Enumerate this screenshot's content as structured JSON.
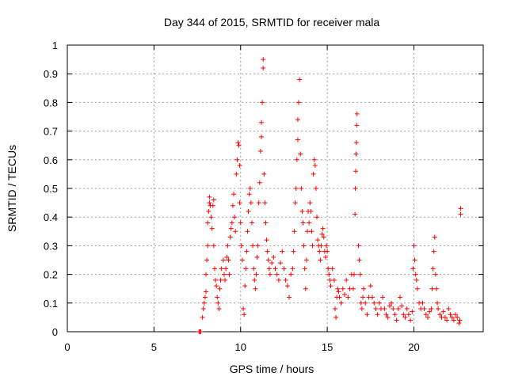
{
  "chart_data": {
    "type": "scatter",
    "title": "Day 344 of 2015, SRMTID for receiver mala",
    "xlabel": "GPS time / hours",
    "ylabel": "SRMTID / TECUs",
    "xlim": [
      0,
      24
    ],
    "ylim": [
      0,
      1
    ],
    "xticks": [
      0,
      5,
      10,
      15,
      20
    ],
    "xtick_labels": [
      "0",
      "5",
      "10",
      "15",
      "20"
    ],
    "yticks": [
      0,
      0.1,
      0.2,
      0.3,
      0.4,
      0.5,
      0.6,
      0.7,
      0.8,
      0.9,
      1
    ],
    "ytick_labels": [
      "0",
      "0.1",
      "0.2",
      "0.3",
      "0.4",
      "0.5",
      "0.6",
      "0.7",
      "0.8",
      "0.9",
      "1"
    ],
    "grid": true,
    "marker": "+",
    "color": "#ff0000",
    "series": [
      {
        "name": "SRMTID",
        "points": [
          [
            7.6,
            0.0
          ],
          [
            7.65,
            0.0
          ],
          [
            7.7,
            0.0
          ],
          [
            7.8,
            0.05
          ],
          [
            7.85,
            0.08
          ],
          [
            7.9,
            0.1
          ],
          [
            7.95,
            0.12
          ],
          [
            8.0,
            0.14
          ],
          [
            8.0,
            0.2
          ],
          [
            8.05,
            0.25
          ],
          [
            8.1,
            0.3
          ],
          [
            8.1,
            0.38
          ],
          [
            8.15,
            0.42
          ],
          [
            8.2,
            0.45
          ],
          [
            8.2,
            0.47
          ],
          [
            8.25,
            0.44
          ],
          [
            8.3,
            0.4
          ],
          [
            8.35,
            0.36
          ],
          [
            8.4,
            0.44
          ],
          [
            8.45,
            0.46
          ],
          [
            8.45,
            0.3
          ],
          [
            8.5,
            0.22
          ],
          [
            8.55,
            0.18
          ],
          [
            8.6,
            0.16
          ],
          [
            8.65,
            0.12
          ],
          [
            8.7,
            0.1
          ],
          [
            8.75,
            0.08
          ],
          [
            8.8,
            0.15
          ],
          [
            8.85,
            0.18
          ],
          [
            8.9,
            0.22
          ],
          [
            9.0,
            0.25
          ],
          [
            9.05,
            0.2
          ],
          [
            9.1,
            0.18
          ],
          [
            9.15,
            0.22
          ],
          [
            9.2,
            0.26
          ],
          [
            9.25,
            0.3
          ],
          [
            9.3,
            0.25
          ],
          [
            9.35,
            0.2
          ],
          [
            9.4,
            0.33
          ],
          [
            9.45,
            0.36
          ],
          [
            9.5,
            0.38
          ],
          [
            9.55,
            0.44
          ],
          [
            9.6,
            0.48
          ],
          [
            9.65,
            0.4
          ],
          [
            9.7,
            0.35
          ],
          [
            9.75,
            0.55
          ],
          [
            9.8,
            0.6
          ],
          [
            9.85,
            0.66
          ],
          [
            9.9,
            0.65
          ],
          [
            9.95,
            0.58
          ],
          [
            9.95,
            0.45
          ],
          [
            10.0,
            0.38
          ],
          [
            10.05,
            0.3
          ],
          [
            10.1,
            0.25
          ],
          [
            10.15,
            0.08
          ],
          [
            10.2,
            0.06
          ],
          [
            10.25,
            0.16
          ],
          [
            10.3,
            0.22
          ],
          [
            10.35,
            0.28
          ],
          [
            10.4,
            0.35
          ],
          [
            10.45,
            0.42
          ],
          [
            10.5,
            0.48
          ],
          [
            10.55,
            0.5
          ],
          [
            10.6,
            0.45
          ],
          [
            10.65,
            0.38
          ],
          [
            10.7,
            0.3
          ],
          [
            10.75,
            0.22
          ],
          [
            10.8,
            0.18
          ],
          [
            10.85,
            0.15
          ],
          [
            10.9,
            0.2
          ],
          [
            10.95,
            0.26
          ],
          [
            11.0,
            0.3
          ],
          [
            11.05,
            0.45
          ],
          [
            11.1,
            0.52
          ],
          [
            11.15,
            0.63
          ],
          [
            11.2,
            0.68
          ],
          [
            11.2,
            0.73
          ],
          [
            11.25,
            0.8
          ],
          [
            11.3,
            0.92
          ],
          [
            11.3,
            0.95
          ],
          [
            11.35,
            0.55
          ],
          [
            11.4,
            0.45
          ],
          [
            11.45,
            0.38
          ],
          [
            11.5,
            0.32
          ],
          [
            11.55,
            0.28
          ],
          [
            11.6,
            0.25
          ],
          [
            11.65,
            0.22
          ],
          [
            11.7,
            0.2
          ],
          [
            11.8,
            0.24
          ],
          [
            11.9,
            0.26
          ],
          [
            12.0,
            0.22
          ],
          [
            12.1,
            0.2
          ],
          [
            12.2,
            0.18
          ],
          [
            12.3,
            0.24
          ],
          [
            12.4,
            0.28
          ],
          [
            12.5,
            0.22
          ],
          [
            12.6,
            0.18
          ],
          [
            12.7,
            0.16
          ],
          [
            12.8,
            0.12
          ],
          [
            12.9,
            0.2
          ],
          [
            13.0,
            0.22
          ],
          [
            13.05,
            0.28
          ],
          [
            13.1,
            0.35
          ],
          [
            13.15,
            0.45
          ],
          [
            13.2,
            0.5
          ],
          [
            13.25,
            0.6
          ],
          [
            13.3,
            0.67
          ],
          [
            13.3,
            0.74
          ],
          [
            13.35,
            0.8
          ],
          [
            13.4,
            0.88
          ],
          [
            13.45,
            0.62
          ],
          [
            13.5,
            0.5
          ],
          [
            13.55,
            0.42
          ],
          [
            13.6,
            0.38
          ],
          [
            13.65,
            0.3
          ],
          [
            13.7,
            0.22
          ],
          [
            13.75,
            0.15
          ],
          [
            13.8,
            0.25
          ],
          [
            13.85,
            0.35
          ],
          [
            13.9,
            0.42
          ],
          [
            13.95,
            0.38
          ],
          [
            14.0,
            0.45
          ],
          [
            14.05,
            0.42
          ],
          [
            14.1,
            0.35
          ],
          [
            14.15,
            0.3
          ],
          [
            14.2,
            0.55
          ],
          [
            14.25,
            0.6
          ],
          [
            14.3,
            0.58
          ],
          [
            14.35,
            0.5
          ],
          [
            14.4,
            0.4
          ],
          [
            14.45,
            0.32
          ],
          [
            14.5,
            0.3
          ],
          [
            14.55,
            0.28
          ],
          [
            14.6,
            0.25
          ],
          [
            14.65,
            0.3
          ],
          [
            14.7,
            0.34
          ],
          [
            14.75,
            0.36
          ],
          [
            14.8,
            0.33
          ],
          [
            14.85,
            0.28
          ],
          [
            14.9,
            0.26
          ],
          [
            14.95,
            0.3
          ],
          [
            15.0,
            0.28
          ],
          [
            15.05,
            0.22
          ],
          [
            15.1,
            0.2
          ],
          [
            15.15,
            0.18
          ],
          [
            15.2,
            0.16
          ],
          [
            15.3,
            0.22
          ],
          [
            15.4,
            0.18
          ],
          [
            15.45,
            0.08
          ],
          [
            15.5,
            0.05
          ],
          [
            15.55,
            0.12
          ],
          [
            15.6,
            0.15
          ],
          [
            15.65,
            0.14
          ],
          [
            15.7,
            0.12
          ],
          [
            15.8,
            0.1
          ],
          [
            15.9,
            0.15
          ],
          [
            16.0,
            0.13
          ],
          [
            16.1,
            0.18
          ],
          [
            16.2,
            0.12
          ],
          [
            16.3,
            0.15
          ],
          [
            16.4,
            0.2
          ],
          [
            16.5,
            0.15
          ],
          [
            16.55,
            0.2
          ],
          [
            16.6,
            0.41
          ],
          [
            16.62,
            0.5
          ],
          [
            16.64,
            0.56
          ],
          [
            16.66,
            0.62
          ],
          [
            16.68,
            0.66
          ],
          [
            16.7,
            0.72
          ],
          [
            16.72,
            0.76
          ],
          [
            16.8,
            0.3
          ],
          [
            16.85,
            0.25
          ],
          [
            16.9,
            0.2
          ],
          [
            16.95,
            0.1
          ],
          [
            17.0,
            0.08
          ],
          [
            17.05,
            0.12
          ],
          [
            17.1,
            0.15
          ],
          [
            17.2,
            0.1
          ],
          [
            17.3,
            0.06
          ],
          [
            17.4,
            0.12
          ],
          [
            17.5,
            0.16
          ],
          [
            17.6,
            0.12
          ],
          [
            17.7,
            0.1
          ],
          [
            17.8,
            0.08
          ],
          [
            17.9,
            0.06
          ],
          [
            18.0,
            0.1
          ],
          [
            18.1,
            0.08
          ],
          [
            18.2,
            0.12
          ],
          [
            18.3,
            0.08
          ],
          [
            18.4,
            0.06
          ],
          [
            18.5,
            0.05
          ],
          [
            18.6,
            0.09
          ],
          [
            18.7,
            0.1
          ],
          [
            18.8,
            0.08
          ],
          [
            18.9,
            0.06
          ],
          [
            19.0,
            0.04
          ],
          [
            19.1,
            0.08
          ],
          [
            19.2,
            0.12
          ],
          [
            19.3,
            0.09
          ],
          [
            19.4,
            0.06
          ],
          [
            19.5,
            0.05
          ],
          [
            19.6,
            0.08
          ],
          [
            19.7,
            0.06
          ],
          [
            19.8,
            0.04
          ],
          [
            19.9,
            0.07
          ],
          [
            19.95,
            0.22
          ],
          [
            20.0,
            0.3
          ],
          [
            20.05,
            0.25
          ],
          [
            20.1,
            0.2
          ],
          [
            20.15,
            0.18
          ],
          [
            20.2,
            0.15
          ],
          [
            20.3,
            0.1
          ],
          [
            20.4,
            0.08
          ],
          [
            20.5,
            0.1
          ],
          [
            20.6,
            0.08
          ],
          [
            20.7,
            0.06
          ],
          [
            20.8,
            0.05
          ],
          [
            20.9,
            0.07
          ],
          [
            21.0,
            0.08
          ],
          [
            21.05,
            0.15
          ],
          [
            21.1,
            0.22
          ],
          [
            21.15,
            0.28
          ],
          [
            21.2,
            0.33
          ],
          [
            21.25,
            0.2
          ],
          [
            21.3,
            0.15
          ],
          [
            21.35,
            0.1
          ],
          [
            21.4,
            0.08
          ],
          [
            21.5,
            0.06
          ],
          [
            21.6,
            0.05
          ],
          [
            21.7,
            0.07
          ],
          [
            21.8,
            0.05
          ],
          [
            21.9,
            0.04
          ],
          [
            22.0,
            0.08
          ],
          [
            22.1,
            0.06
          ],
          [
            22.2,
            0.05
          ],
          [
            22.3,
            0.04
          ],
          [
            22.4,
            0.06
          ],
          [
            22.5,
            0.05
          ],
          [
            22.6,
            0.03
          ],
          [
            22.65,
            0.04
          ],
          [
            22.7,
            0.41
          ],
          [
            22.7,
            0.43
          ]
        ]
      }
    ]
  }
}
